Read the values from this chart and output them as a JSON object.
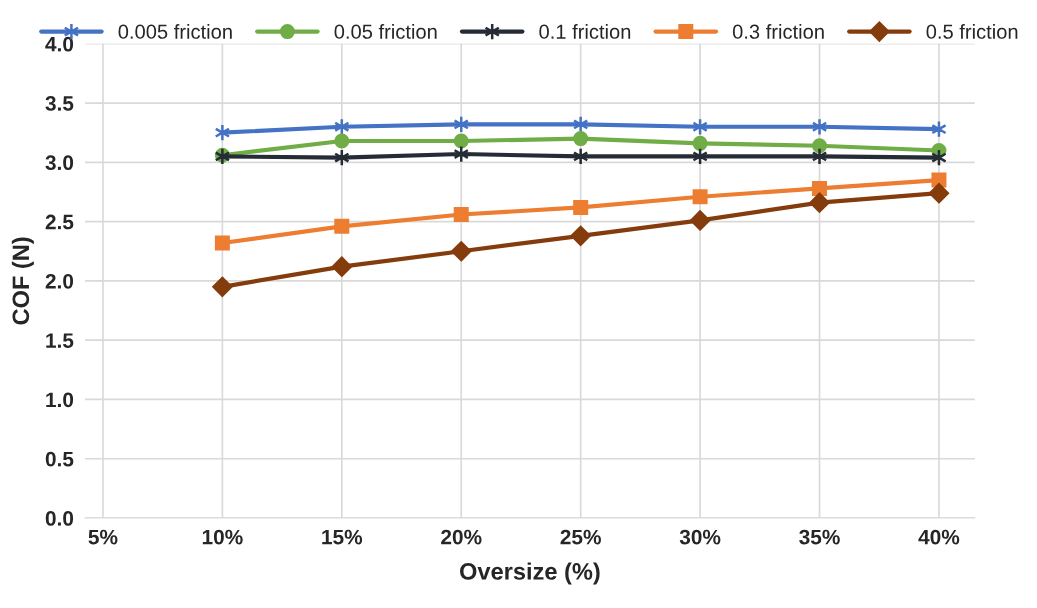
{
  "chart_data": {
    "type": "line",
    "xlabel": "Oversize (%)",
    "ylabel": "COF (N)",
    "categories": [
      "5%",
      "10%",
      "15%",
      "20%",
      "25%",
      "30%",
      "35%",
      "40%"
    ],
    "series": [
      {
        "name": "0.005 friction",
        "color": "#4472c4",
        "marker": "cross",
        "values": [
          null,
          3.25,
          3.3,
          3.32,
          3.32,
          3.3,
          3.3,
          3.28
        ]
      },
      {
        "name": "0.05 friction",
        "color": "#70ad47",
        "marker": "circle",
        "values": [
          null,
          3.06,
          3.18,
          3.18,
          3.2,
          3.16,
          3.14,
          3.1
        ]
      },
      {
        "name": "0.1 friction",
        "color": "#262c36",
        "marker": "cross",
        "values": [
          null,
          3.05,
          3.04,
          3.07,
          3.05,
          3.05,
          3.05,
          3.04
        ]
      },
      {
        "name": "0.3 friction",
        "color": "#ed7d31",
        "marker": "square",
        "values": [
          null,
          2.32,
          2.46,
          2.56,
          2.62,
          2.71,
          2.78,
          2.85
        ]
      },
      {
        "name": "0.5 friction",
        "color": "#843c0c",
        "marker": "diamond",
        "values": [
          null,
          1.95,
          2.12,
          2.25,
          2.38,
          2.51,
          2.66,
          2.74
        ]
      }
    ],
    "ylim": [
      0,
      4
    ],
    "yticks": [
      {
        "value": 0,
        "label": "0.0"
      },
      {
        "value": 0.5,
        "label": "0.5"
      },
      {
        "value": 1,
        "label": "1.0"
      },
      {
        "value": 1.5,
        "label": "1.5"
      },
      {
        "value": 2,
        "label": "2.0"
      },
      {
        "value": 2.5,
        "label": "2.5"
      },
      {
        "value": 3,
        "label": "3.0"
      },
      {
        "value": 3.5,
        "label": "3.5"
      },
      {
        "value": 4,
        "label": "4.0"
      }
    ],
    "grid": true,
    "legend": "top"
  }
}
